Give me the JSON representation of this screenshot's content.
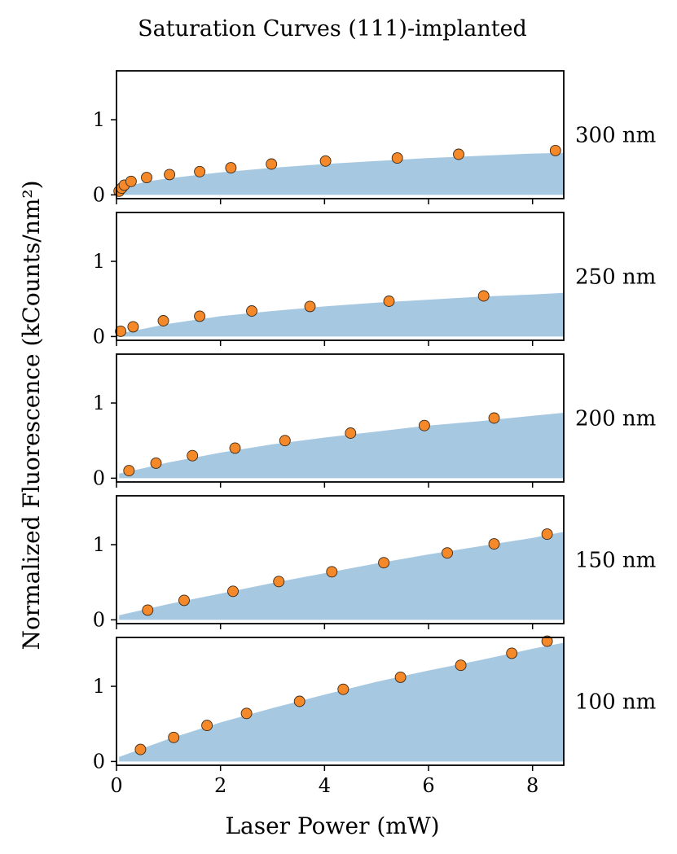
{
  "chart_data": {
    "type": "scatter",
    "title": "Saturation Curves (111)-implanted",
    "xlabel": "Laser Power (mW)",
    "ylabel": "Normalized Fluorescence (kCounts/nm²)",
    "xlim": [
      0,
      8.6
    ],
    "ylim": [
      -0.05,
      1.65
    ],
    "xticks": [
      0,
      2,
      4,
      6,
      8
    ],
    "yticks": [
      0,
      1
    ],
    "grid": false,
    "colors": {
      "fit_fill": "#a6c8e1",
      "points": "#f5892a",
      "point_edge": "#3a2a1a",
      "axes": "#000000"
    },
    "panels": [
      {
        "label": "300 nm",
        "points": [
          [
            0.05,
            0.05
          ],
          [
            0.1,
            0.09
          ],
          [
            0.15,
            0.13
          ],
          [
            0.28,
            0.18
          ],
          [
            0.58,
            0.23
          ],
          [
            1.02,
            0.27
          ],
          [
            1.6,
            0.31
          ],
          [
            2.2,
            0.36
          ],
          [
            2.98,
            0.41
          ],
          [
            4.02,
            0.45
          ],
          [
            5.4,
            0.49
          ],
          [
            6.58,
            0.54
          ],
          [
            8.44,
            0.59
          ]
        ],
        "fit": [
          [
            0.05,
            0.03
          ],
          [
            0.3,
            0.13
          ],
          [
            0.6,
            0.18
          ],
          [
            1.0,
            0.22
          ],
          [
            1.5,
            0.26
          ],
          [
            2.0,
            0.3
          ],
          [
            3.0,
            0.36
          ],
          [
            4.0,
            0.41
          ],
          [
            5.0,
            0.45
          ],
          [
            6.0,
            0.49
          ],
          [
            7.0,
            0.52
          ],
          [
            8.0,
            0.55
          ],
          [
            8.6,
            0.56
          ]
        ]
      },
      {
        "label": "250 nm",
        "points": [
          [
            0.08,
            0.07
          ],
          [
            0.32,
            0.13
          ],
          [
            0.9,
            0.21
          ],
          [
            1.6,
            0.27
          ],
          [
            2.6,
            0.34
          ],
          [
            3.72,
            0.4
          ],
          [
            5.24,
            0.47
          ],
          [
            7.06,
            0.54
          ]
        ],
        "fit": [
          [
            0.05,
            0.04
          ],
          [
            0.5,
            0.1
          ],
          [
            1.0,
            0.17
          ],
          [
            2.0,
            0.27
          ],
          [
            3.0,
            0.34
          ],
          [
            4.0,
            0.4
          ],
          [
            5.0,
            0.45
          ],
          [
            6.0,
            0.49
          ],
          [
            7.0,
            0.53
          ],
          [
            8.0,
            0.56
          ],
          [
            8.6,
            0.58
          ]
        ]
      },
      {
        "label": "200 nm",
        "points": [
          [
            0.24,
            0.1
          ],
          [
            0.76,
            0.2
          ],
          [
            1.46,
            0.3
          ],
          [
            2.28,
            0.4
          ],
          [
            3.24,
            0.5
          ],
          [
            4.5,
            0.6
          ],
          [
            5.92,
            0.7
          ],
          [
            7.26,
            0.8
          ]
        ],
        "fit": [
          [
            0.05,
            0.06
          ],
          [
            0.5,
            0.13
          ],
          [
            1.0,
            0.21
          ],
          [
            2.0,
            0.34
          ],
          [
            3.0,
            0.45
          ],
          [
            4.0,
            0.54
          ],
          [
            5.0,
            0.62
          ],
          [
            6.0,
            0.7
          ],
          [
            7.0,
            0.76
          ],
          [
            8.0,
            0.83
          ],
          [
            8.6,
            0.87
          ]
        ]
      },
      {
        "label": "150 nm",
        "points": [
          [
            0.6,
            0.13
          ],
          [
            1.3,
            0.26
          ],
          [
            2.24,
            0.38
          ],
          [
            3.12,
            0.51
          ],
          [
            4.14,
            0.64
          ],
          [
            5.14,
            0.76
          ],
          [
            6.36,
            0.89
          ],
          [
            7.26,
            1.01
          ],
          [
            8.28,
            1.14
          ]
        ],
        "fit": [
          [
            0.05,
            0.06
          ],
          [
            1.0,
            0.21
          ],
          [
            2.0,
            0.35
          ],
          [
            3.0,
            0.49
          ],
          [
            4.0,
            0.62
          ],
          [
            5.0,
            0.75
          ],
          [
            6.0,
            0.87
          ],
          [
            7.0,
            0.98
          ],
          [
            8.0,
            1.09
          ],
          [
            8.6,
            1.17
          ]
        ]
      },
      {
        "label": "100 nm",
        "points": [
          [
            0.46,
            0.16
          ],
          [
            1.1,
            0.32
          ],
          [
            1.74,
            0.48
          ],
          [
            2.5,
            0.64
          ],
          [
            3.52,
            0.8
          ],
          [
            4.36,
            0.96
          ],
          [
            5.46,
            1.12
          ],
          [
            6.62,
            1.28
          ],
          [
            7.6,
            1.44
          ],
          [
            8.28,
            1.6
          ]
        ],
        "fit": [
          [
            0.05,
            0.06
          ],
          [
            1.0,
            0.3
          ],
          [
            2.0,
            0.52
          ],
          [
            3.0,
            0.71
          ],
          [
            4.0,
            0.89
          ],
          [
            5.0,
            1.06
          ],
          [
            6.0,
            1.21
          ],
          [
            7.0,
            1.35
          ],
          [
            8.0,
            1.5
          ],
          [
            8.6,
            1.58
          ]
        ]
      }
    ]
  }
}
